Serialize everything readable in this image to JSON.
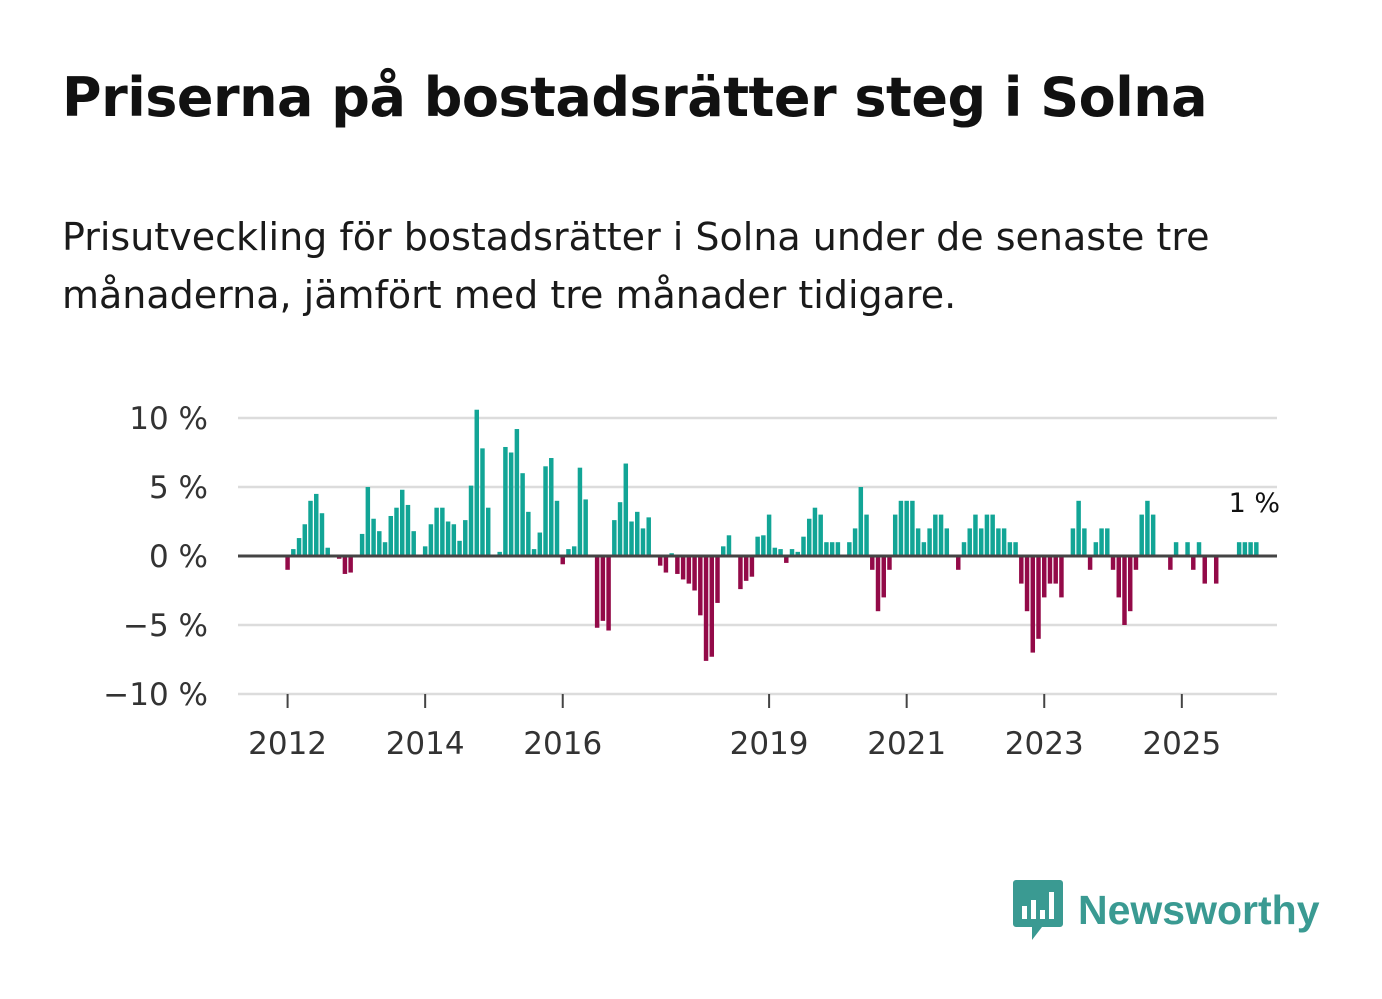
{
  "title": "Priserna på bostadsrätter steg i Solna",
  "subtitle": "Prisutveckling för bostadsrätter i Solna under de senaste tre månaderna, jämfört med tre månader tidigare.",
  "brand": {
    "name": "Newsworthy",
    "color": "#3a9a92"
  },
  "colors": {
    "positive": "#12a596",
    "negative": "#930a48",
    "grid": "#dcdcdc",
    "zero_line": "#444444"
  },
  "chart_data": {
    "type": "bar",
    "title": "Priserna på bostadsrätter steg i Solna",
    "xlabel": "",
    "ylabel": "",
    "ylim": [
      -10,
      10
    ],
    "y_ticks": [
      {
        "value": 10,
        "label": "10 %"
      },
      {
        "value": 5,
        "label": "5 %"
      },
      {
        "value": 0,
        "label": "0 %"
      },
      {
        "value": -5,
        "label": "−5 %"
      },
      {
        "value": -10,
        "label": "−10 %"
      }
    ],
    "x_ticks": [
      {
        "value": 2012,
        "label": "2012"
      },
      {
        "value": 2014,
        "label": "2014"
      },
      {
        "value": 2016,
        "label": "2016"
      },
      {
        "value": 2019,
        "label": "2019"
      },
      {
        "value": 2021,
        "label": "2021"
      },
      {
        "value": 2023,
        "label": "2023"
      },
      {
        "value": 2025,
        "label": "2025"
      }
    ],
    "x_start": 2011.25,
    "x_end": 2026.5,
    "series_start": 2011.25,
    "step": 0.08333333,
    "annotation": {
      "label": "1 %",
      "value": 1
    },
    "values": [
      0,
      0,
      0,
      0,
      0,
      0,
      0,
      0,
      0,
      -1,
      0.5,
      1.3,
      2.3,
      4.0,
      4.5,
      3.1,
      0.6,
      0,
      -0.2,
      -1.3,
      -1.2,
      0,
      1.6,
      5.0,
      2.7,
      1.8,
      1.0,
      2.9,
      3.5,
      4.8,
      3.7,
      1.8,
      0,
      0.7,
      2.3,
      3.5,
      3.5,
      2.5,
      2.3,
      1.1,
      2.6,
      5.1,
      10.6,
      7.8,
      3.5,
      0,
      0.3,
      7.9,
      7.5,
      9.2,
      6.0,
      3.2,
      0.5,
      1.7,
      6.5,
      7.1,
      4.0,
      -0.6,
      0.5,
      0.7,
      6.4,
      4.1,
      -0.1,
      -5.2,
      -4.7,
      -5.4,
      2.6,
      3.9,
      6.7,
      2.5,
      3.2,
      2.0,
      2.8,
      0,
      -0.7,
      -1.2,
      0.2,
      -1.3,
      -1.7,
      -2.0,
      -2.5,
      -4.3,
      -7.6,
      -7.3,
      -3.4,
      0.7,
      1.5,
      0,
      -2.4,
      -1.8,
      -1.5,
      1.4,
      1.5,
      3.0,
      0.6,
      0.5,
      -0.5,
      0.5,
      0.3,
      1.4,
      2.7,
      3.5,
      3.0,
      1.0,
      1.0,
      1.0,
      0,
      1.0,
      2.0,
      5.0,
      3.0,
      -1.0,
      -4.0,
      -3.0,
      -1.0,
      3.0,
      4.0,
      4.0,
      4.0,
      2.0,
      1.0,
      2.0,
      3.0,
      3.0,
      2.0,
      0,
      -1.0,
      1.0,
      2.0,
      3.0,
      2.0,
      3.0,
      3.0,
      2.0,
      2.0,
      1.0,
      1.0,
      -2.0,
      -4.0,
      -7.0,
      -6.0,
      -3.0,
      -2.0,
      -2.0,
      -3.0,
      0,
      2.0,
      4.0,
      2.0,
      -1.0,
      1.0,
      2.0,
      2.0,
      -1.0,
      -3.0,
      -5.0,
      -4.0,
      -1.0,
      3.0,
      4.0,
      3.0,
      0,
      0,
      -1.0,
      1.0,
      0,
      1.0,
      -1.0,
      1.0,
      -2.0,
      0,
      -2.0,
      0,
      0,
      0,
      1.0,
      1.0,
      1.0,
      1.0
    ]
  }
}
